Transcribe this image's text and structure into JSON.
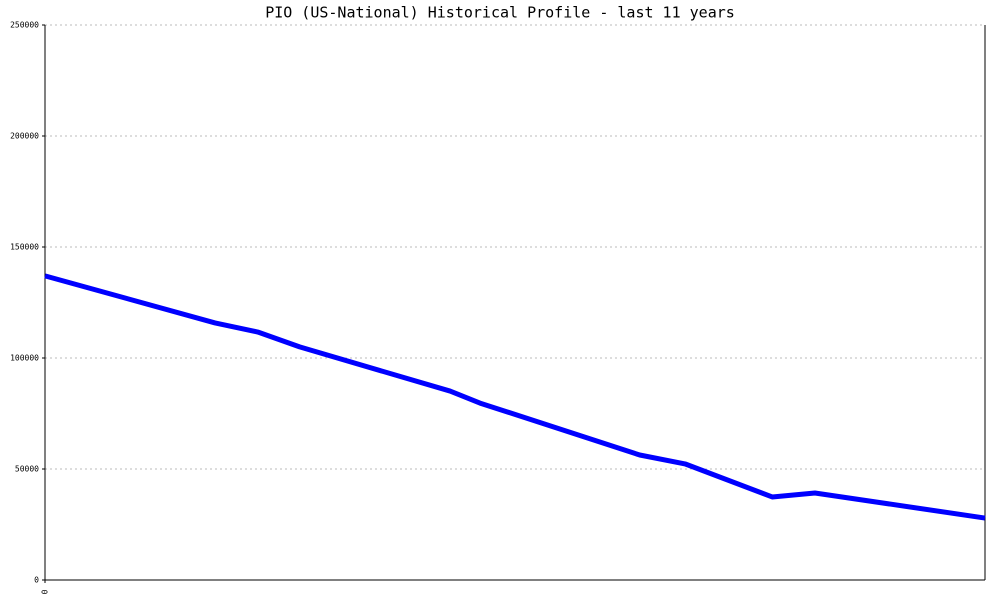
{
  "chart_data": {
    "type": "line",
    "title": "PIO (US-National) Historical Profile - last 11 years",
    "x": [
      0,
      1.99,
      2.49,
      2.98,
      4.74,
      5.09,
      6.96,
      7.49,
      8.51,
      9.01,
      11
    ],
    "series": [
      {
        "color": "#0000ff",
        "values": [
          137000,
          115800,
          111700,
          105000,
          85100,
          79700,
          56300,
          52300,
          37400,
          39200,
          27900
        ]
      }
    ],
    "xlim": [
      0,
      11
    ],
    "xticks": [
      0
    ],
    "ylim": [
      0,
      250000
    ],
    "yticks": [
      0,
      50000,
      100000,
      150000,
      200000,
      250000
    ],
    "grid": true
  }
}
